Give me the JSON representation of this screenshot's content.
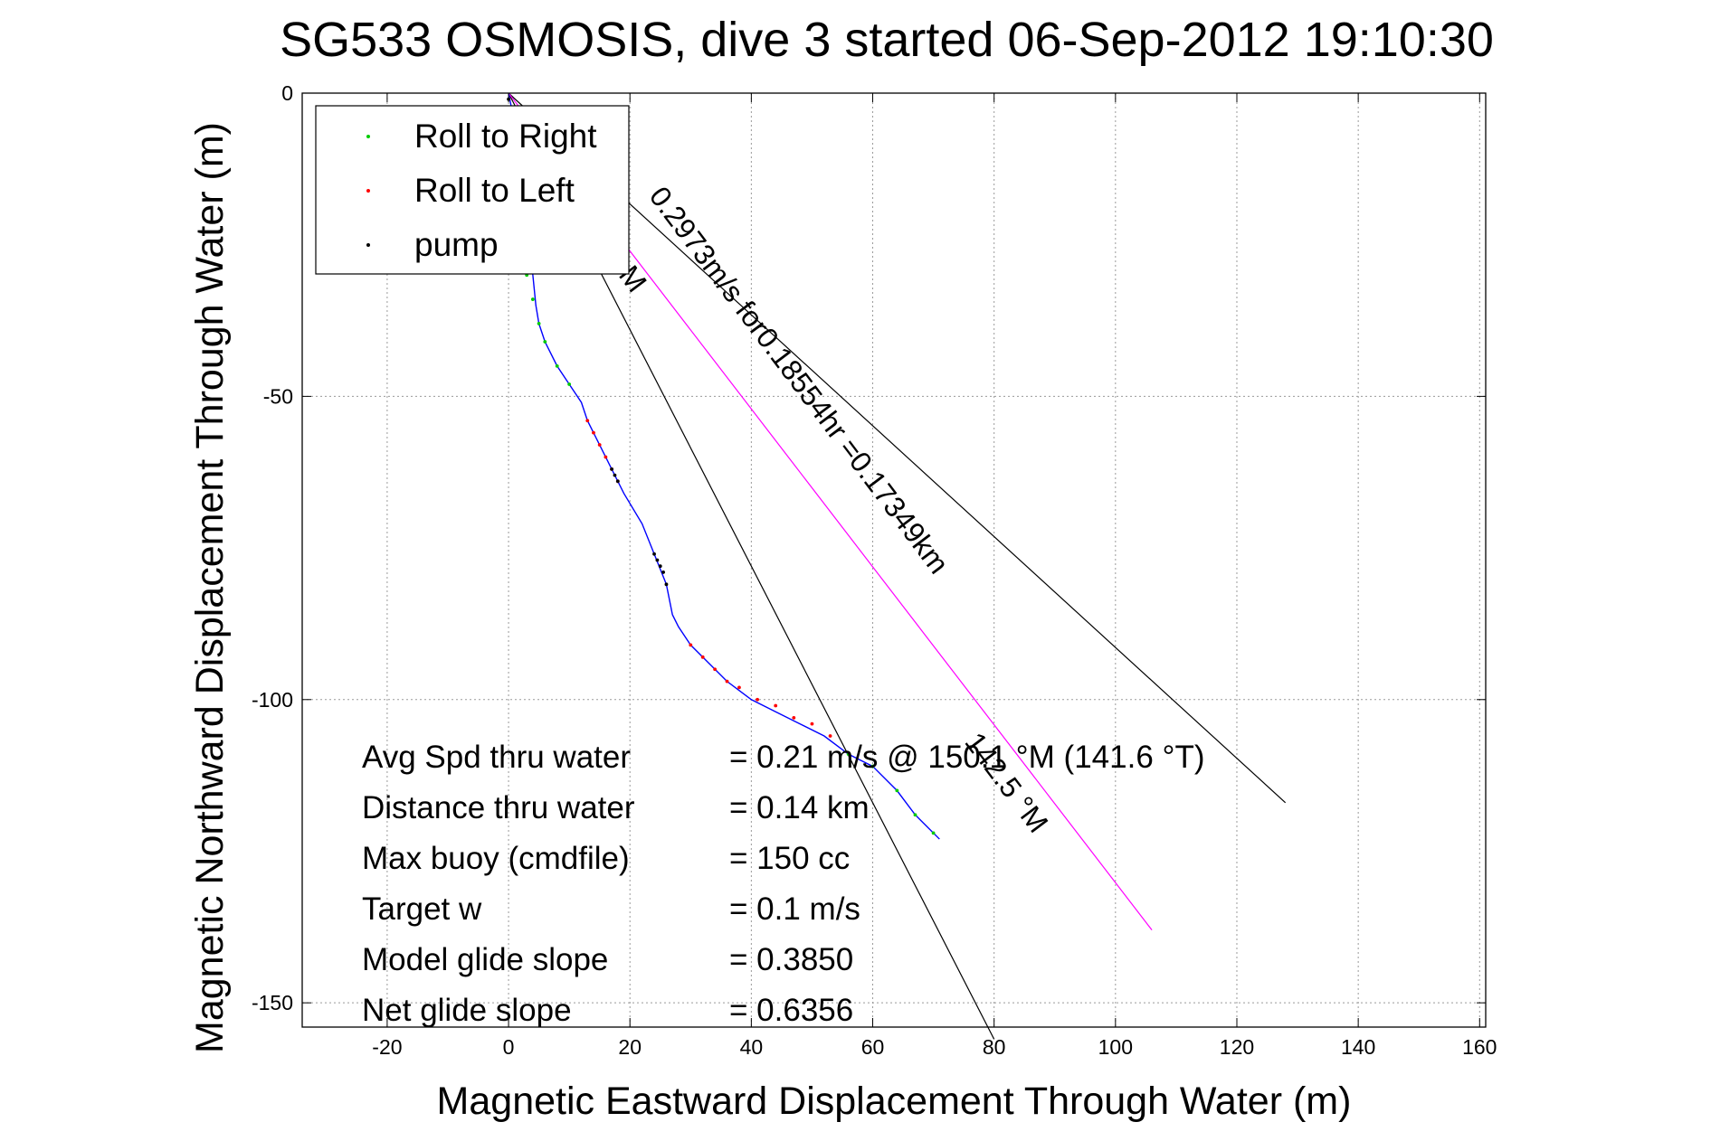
{
  "chart_data": {
    "type": "line",
    "title": "SG533 OSMOSIS, dive 3 started 06-Sep-2012 19:10:30",
    "xlabel": "Magnetic Eastward Displacement Through Water (m)",
    "ylabel": "Magnetic Northward Displacement Through Water (m)",
    "xlim": [
      -34,
      161
    ],
    "ylim": [
      -154,
      0
    ],
    "xticks": [
      -20,
      0,
      20,
      40,
      60,
      80,
      100,
      120,
      140,
      160
    ],
    "yticks": [
      0,
      -50,
      -100,
      -150
    ],
    "xtick_labels": [
      "-20",
      "0",
      "20",
      "40",
      "60",
      "80",
      "100",
      "120",
      "140",
      "160"
    ],
    "ytick_labels": [
      "0",
      "-50",
      "-100",
      "-150"
    ],
    "grid": true,
    "legend_position": "top-left",
    "legend": [
      {
        "label": "Roll to Right",
        "color": "#00cc00"
      },
      {
        "label": "Roll to Left",
        "color": "#ff0000"
      },
      {
        "label": "pump",
        "color": "#000000"
      }
    ],
    "track": {
      "color": "#0000ff",
      "x": [
        0,
        1,
        2,
        2.5,
        3,
        3.5,
        4,
        4.5,
        5,
        6,
        8,
        10,
        12,
        13,
        15,
        17,
        19,
        22,
        24,
        26,
        27,
        28,
        30,
        33,
        36,
        40,
        44,
        48,
        52,
        56,
        60,
        64,
        67,
        71
      ],
      "y": [
        0,
        -5,
        -10,
        -15,
        -20,
        -25,
        -30,
        -35,
        -38,
        -41,
        -45,
        -48,
        -51,
        -54,
        -58,
        -62,
        -66,
        -71,
        -76,
        -81,
        -86,
        -88,
        -91,
        -94,
        -97,
        -100,
        -102,
        -104,
        -106,
        -109,
        -111,
        -115,
        -119,
        -123
      ]
    },
    "roll_right": {
      "x": [
        3,
        4,
        5,
        6,
        8,
        10,
        56,
        60,
        64,
        67,
        70
      ],
      "y": [
        -30,
        -34,
        -38,
        -41,
        -45,
        -48,
        -109,
        -111,
        -115,
        -119,
        -122
      ]
    },
    "roll_left": {
      "x": [
        13,
        14,
        15,
        16,
        17,
        18,
        30,
        32,
        34,
        36,
        38,
        41,
        44,
        47,
        50,
        53
      ],
      "y": [
        -54,
        -56,
        -58,
        -60,
        -62,
        -64,
        -91,
        -93,
        -95,
        -97,
        -98,
        -100,
        -101,
        -103,
        -104,
        -106
      ]
    },
    "pump": {
      "x": [
        0,
        1,
        17,
        17.5,
        18,
        24,
        24.5,
        25,
        25.5,
        26
      ],
      "y": [
        -1,
        -3,
        -62,
        -63,
        -64,
        -76,
        -77,
        -78,
        -79,
        -81
      ]
    },
    "heading_lines": [
      {
        "color": "#000000",
        "x": [
          0,
          128
        ],
        "y": [
          0,
          -117
        ]
      },
      {
        "color": "#000000",
        "x": [
          0,
          80
        ],
        "y": [
          0,
          -156
        ]
      },
      {
        "color": "#ff00ff",
        "x": [
          0,
          106
        ],
        "y": [
          0,
          -138
        ]
      }
    ],
    "annotations": [
      {
        "text": "0.2973m/s for0.18554hr =0.17349km",
        "x": 23,
        "y": -17,
        "rotation": 53
      },
      {
        "text": "142.5 °M",
        "x": 75,
        "y": -107,
        "rotation": 53
      },
      {
        "text": "M",
        "x": 18,
        "y": -30,
        "rotation": 53
      }
    ],
    "stats": [
      {
        "label": "Avg Spd thru water",
        "value": "=  0.21 m/s @ 150.1 °M (141.6 °T)"
      },
      {
        "label": "Distance thru water",
        "value": "=  0.14 km"
      },
      {
        "label": "Max buoy (cmdfile)",
        "value": "= 150 cc"
      },
      {
        "label": "Target w",
        "value": "= 0.1 m/s"
      },
      {
        "label": "Model glide slope",
        "value": "= 0.3850"
      },
      {
        "label": "Net glide slope",
        "value": "= 0.6356"
      }
    ]
  }
}
